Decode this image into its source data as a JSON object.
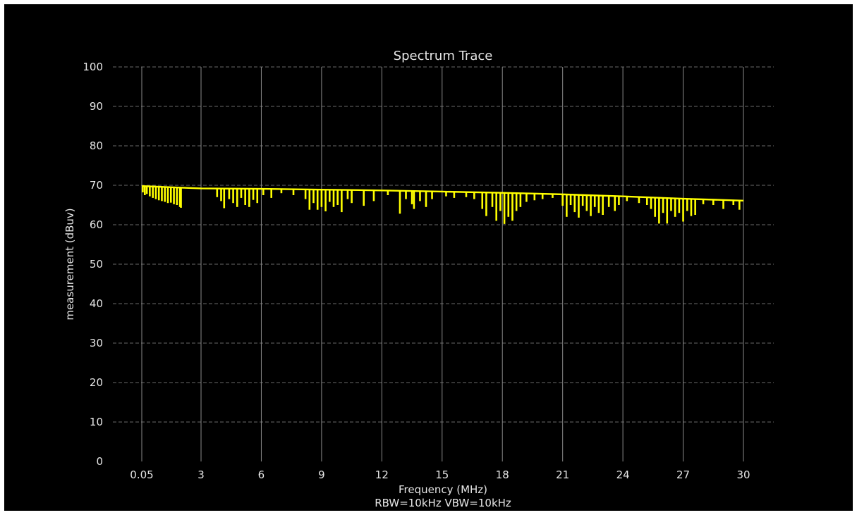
{
  "chart_data": {
    "type": "line",
    "title": "Spectrum Trace",
    "xlabel": "Frequency (MHz)",
    "xlabel2": "RBW=10kHz VBW=10kHz",
    "ylabel": "measurement (dBuv)",
    "xlim": [
      0.05,
      30
    ],
    "ylim": [
      0,
      100
    ],
    "x_ticks": [
      0.05,
      3,
      6,
      9,
      12,
      15,
      18,
      21,
      24,
      27,
      30
    ],
    "x_tick_labels": [
      "0.05",
      "3",
      "6",
      "9",
      "12",
      "15",
      "18",
      "21",
      "24",
      "27",
      "30"
    ],
    "y_ticks": [
      0,
      10,
      20,
      30,
      40,
      50,
      60,
      70,
      80,
      90,
      100
    ],
    "y_tick_labels": [
      "0",
      "10",
      "20",
      "30",
      "40",
      "50",
      "60",
      "70",
      "80",
      "90",
      "100"
    ],
    "grid": {
      "x": "solid",
      "y": "dashed"
    },
    "series": [
      {
        "color": "#ffff00",
        "baseline": [
          [
            0.05,
            69.8
          ],
          [
            3,
            69.2
          ],
          [
            6,
            69.1
          ],
          [
            9,
            68.9
          ],
          [
            12,
            68.7
          ],
          [
            15,
            68.4
          ],
          [
            18,
            68.1
          ],
          [
            21,
            67.7
          ],
          [
            24,
            67.2
          ],
          [
            27,
            66.6
          ],
          [
            30,
            66.1
          ]
        ],
        "dips": [
          [
            0.1,
            68.2
          ],
          [
            0.2,
            67.5
          ],
          [
            0.3,
            67.8
          ],
          [
            0.45,
            67.2
          ],
          [
            0.6,
            66.8
          ],
          [
            0.75,
            66.5
          ],
          [
            0.9,
            66.2
          ],
          [
            1.05,
            66.0
          ],
          [
            1.2,
            65.8
          ],
          [
            1.35,
            65.5
          ],
          [
            1.5,
            65.6
          ],
          [
            1.65,
            65.2
          ],
          [
            1.8,
            65.0
          ],
          [
            1.95,
            64.5
          ],
          [
            2.0,
            64.3
          ],
          [
            3.8,
            67.0
          ],
          [
            4.0,
            66.0
          ],
          [
            4.15,
            64.2
          ],
          [
            4.4,
            66.5
          ],
          [
            4.6,
            65.5
          ],
          [
            4.8,
            64.5
          ],
          [
            5.0,
            66.8
          ],
          [
            5.2,
            65.0
          ],
          [
            5.4,
            64.5
          ],
          [
            5.6,
            66.3
          ],
          [
            5.8,
            65.5
          ],
          [
            6.1,
            67.5
          ],
          [
            6.5,
            66.8
          ],
          [
            7.0,
            68.0
          ],
          [
            7.6,
            67.5
          ],
          [
            8.2,
            66.5
          ],
          [
            8.4,
            63.8
          ],
          [
            8.6,
            65.5
          ],
          [
            8.8,
            63.8
          ],
          [
            9.0,
            64.5
          ],
          [
            9.2,
            63.4
          ],
          [
            9.4,
            65.8
          ],
          [
            9.6,
            64.5
          ],
          [
            9.8,
            65.0
          ],
          [
            10.0,
            63.2
          ],
          [
            10.3,
            66.5
          ],
          [
            10.5,
            65.5
          ],
          [
            11.1,
            64.8
          ],
          [
            11.6,
            66.0
          ],
          [
            12.3,
            67.5
          ],
          [
            12.9,
            62.8
          ],
          [
            13.2,
            66.5
          ],
          [
            13.5,
            65.2
          ],
          [
            13.6,
            64.0
          ],
          [
            13.9,
            66.0
          ],
          [
            14.2,
            64.5
          ],
          [
            14.5,
            66.5
          ],
          [
            15.2,
            67.2
          ],
          [
            15.6,
            66.8
          ],
          [
            16.2,
            67.0
          ],
          [
            16.6,
            66.5
          ],
          [
            17.0,
            64.0
          ],
          [
            17.2,
            62.2
          ],
          [
            17.5,
            64.5
          ],
          [
            17.7,
            61.0
          ],
          [
            17.9,
            63.5
          ],
          [
            18.1,
            60.2
          ],
          [
            18.3,
            62.0
          ],
          [
            18.5,
            61.0
          ],
          [
            18.7,
            63.5
          ],
          [
            18.9,
            64.5
          ],
          [
            19.2,
            65.8
          ],
          [
            19.6,
            66.2
          ],
          [
            20.0,
            66.5
          ],
          [
            20.5,
            66.8
          ],
          [
            21.0,
            64.8
          ],
          [
            21.2,
            62.0
          ],
          [
            21.4,
            65.0
          ],
          [
            21.6,
            63.2
          ],
          [
            21.8,
            61.8
          ],
          [
            22.0,
            64.8
          ],
          [
            22.2,
            63.5
          ],
          [
            22.4,
            62.2
          ],
          [
            22.6,
            64.5
          ],
          [
            22.8,
            63.0
          ],
          [
            23.0,
            62.5
          ],
          [
            23.3,
            64.5
          ],
          [
            23.6,
            63.5
          ],
          [
            23.8,
            65.0
          ],
          [
            24.2,
            66.0
          ],
          [
            24.8,
            65.5
          ],
          [
            25.2,
            65.0
          ],
          [
            25.4,
            64.0
          ],
          [
            25.6,
            62.0
          ],
          [
            25.8,
            60.3
          ],
          [
            26.0,
            63.0
          ],
          [
            26.2,
            60.3
          ],
          [
            26.4,
            63.5
          ],
          [
            26.6,
            62.0
          ],
          [
            26.8,
            63.0
          ],
          [
            27.0,
            60.8
          ],
          [
            27.2,
            63.5
          ],
          [
            27.4,
            62.2
          ],
          [
            27.6,
            62.5
          ],
          [
            28.0,
            65.2
          ],
          [
            28.5,
            65.0
          ],
          [
            29.0,
            64.0
          ],
          [
            29.5,
            65.0
          ],
          [
            29.8,
            63.8
          ]
        ]
      }
    ]
  }
}
